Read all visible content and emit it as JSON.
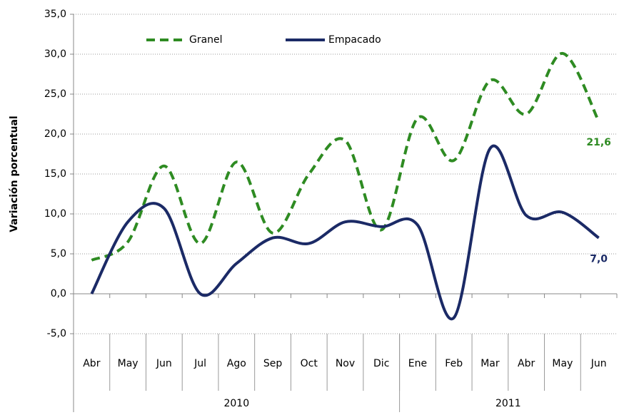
{
  "chart_data": {
    "type": "line",
    "y_label": "Variación porcentual",
    "categories": [
      "Abr",
      "May",
      "Jun",
      "Jul",
      "Ago",
      "Sep",
      "Oct",
      "Nov",
      "Dic",
      "Ene",
      "Feb",
      "Mar",
      "Abr",
      "May",
      "Jun"
    ],
    "x_groups": [
      {
        "label": "2010",
        "count": 9
      },
      {
        "label": "2011",
        "count": 6
      }
    ],
    "series": [
      {
        "name": "Granel",
        "color": "#2e8b22",
        "dash": true,
        "values": [
          4.2,
          6.5,
          16.0,
          6.3,
          16.5,
          7.6,
          15.0,
          19.2,
          8.0,
          22.0,
          16.7,
          26.7,
          22.5,
          30.1,
          21.6
        ],
        "value_labels": [
          null,
          null,
          null,
          null,
          null,
          null,
          null,
          null,
          null,
          null,
          null,
          null,
          null,
          null,
          "21,6"
        ]
      },
      {
        "name": "Empacado",
        "color": "#1b2a66",
        "dash": false,
        "values": [
          0.0,
          9.0,
          10.7,
          0.0,
          3.8,
          7.0,
          6.3,
          9.0,
          8.4,
          8.6,
          -3.0,
          18.2,
          9.8,
          10.2,
          7.0
        ],
        "value_labels": [
          null,
          null,
          null,
          null,
          null,
          null,
          null,
          null,
          null,
          null,
          null,
          null,
          null,
          null,
          "7,0"
        ]
      }
    ],
    "ylim": [
      -5,
      35
    ],
    "yticks": [
      {
        "value": -5,
        "label": "-5,0"
      },
      {
        "value": 0,
        "label": "0,0"
      },
      {
        "value": 5,
        "label": "5,0"
      },
      {
        "value": 10,
        "label": "10,0"
      },
      {
        "value": 15,
        "label": "15,0"
      },
      {
        "value": 20,
        "label": "20,0"
      },
      {
        "value": 25,
        "label": "25,0"
      },
      {
        "value": 30,
        "label": "30,0"
      },
      {
        "value": 35,
        "label": "35,0"
      }
    ],
    "grid": true,
    "legend": "top"
  }
}
